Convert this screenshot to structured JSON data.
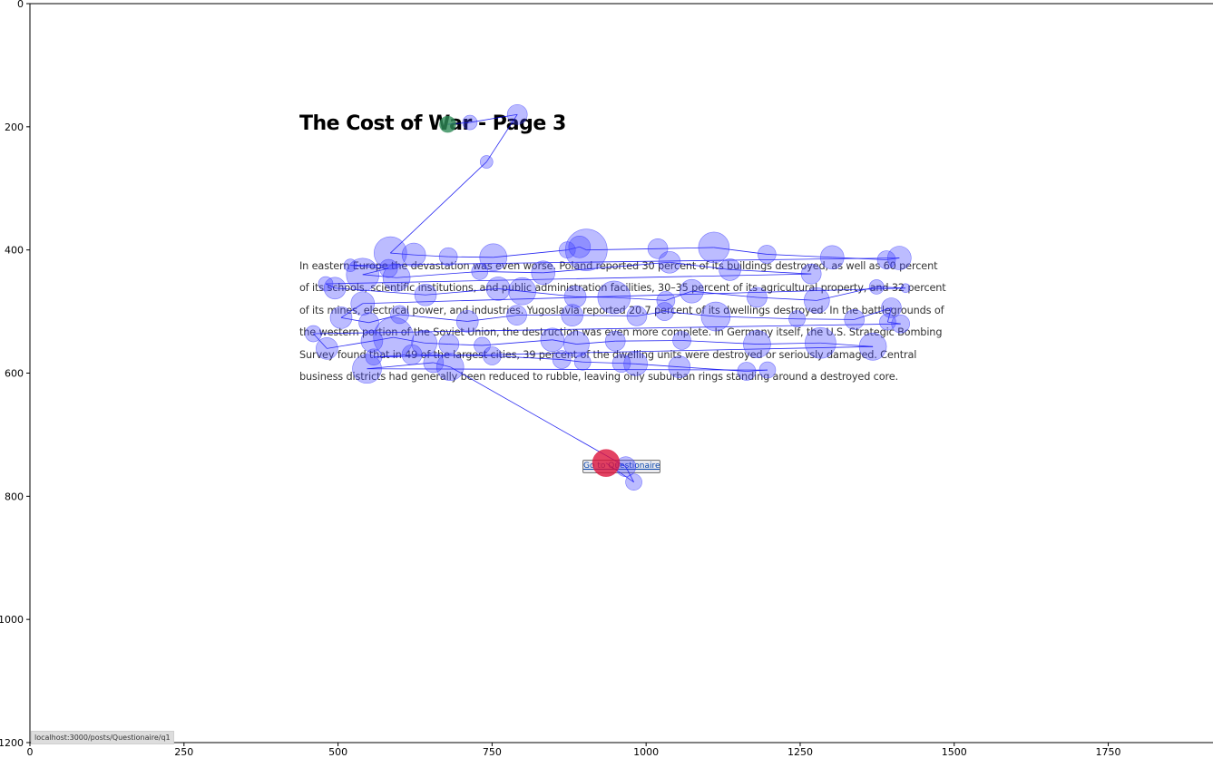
{
  "page": {
    "title": "The Cost of War - Page 3",
    "body_text": "In eastern Europe the devastation was even worse. Poland reported 30 percent of its buildings destroyed, as well as 60 percent of its schools, scientific institutions, and public administration facilities, 30–35 percent of its agricultural property, and 32 percent of its mines, electrical power, and industries. Yugoslavia reported 20.7 percent of its dwellings destroyed. In the battlegrounds of the western portion of the Soviet Union, the destruction was even more complete. In Germany itself, the U.S. Strategic Bombing Survey found that in 49 of the largest cities, 39 percent of the dwelling units were destroyed or seriously damaged. Central business districts had generally been reduced to rubble, leaving only suburban rings standing around a destroyed core.",
    "button_label": "Go to Questionaire",
    "status_url": "localhost:3000/posts/Questionaire/q1"
  },
  "chart_data": {
    "type": "scatter",
    "title": "",
    "xlabel": "",
    "ylabel": "",
    "xlim": [
      0,
      1920
    ],
    "ylim": [
      1200,
      0
    ],
    "y_inverted": true,
    "x_ticks": [
      0,
      250,
      500,
      750,
      1000,
      1250,
      1500,
      1750
    ],
    "y_ticks": [
      0,
      200,
      400,
      600,
      800,
      1000,
      1200
    ],
    "grid": false,
    "connect_points": true,
    "colors": {
      "fixation": "#4040ff",
      "path": "#0000ee",
      "start": "#2e8b57",
      "end": "#dc143c"
    },
    "series": [
      {
        "type": "fixations",
        "points": [
          {
            "x": 678,
            "y": 196,
            "d": 18
          },
          {
            "x": 714,
            "y": 193,
            "d": 16
          },
          {
            "x": 791,
            "y": 180,
            "d": 22
          },
          {
            "x": 741,
            "y": 257,
            "d": 14
          },
          {
            "x": 585,
            "y": 405,
            "d": 36
          },
          {
            "x": 623,
            "y": 408,
            "d": 26
          },
          {
            "x": 679,
            "y": 411,
            "d": 20
          },
          {
            "x": 752,
            "y": 412,
            "d": 30
          },
          {
            "x": 872,
            "y": 400,
            "d": 18
          },
          {
            "x": 892,
            "y": 395,
            "d": 24
          },
          {
            "x": 903,
            "y": 400,
            "d": 46
          },
          {
            "x": 1019,
            "y": 398,
            "d": 22
          },
          {
            "x": 1110,
            "y": 396,
            "d": 34
          },
          {
            "x": 1196,
            "y": 407,
            "d": 20
          },
          {
            "x": 1302,
            "y": 412,
            "d": 26
          },
          {
            "x": 1390,
            "y": 416,
            "d": 20
          },
          {
            "x": 1411,
            "y": 413,
            "d": 26
          },
          {
            "x": 520,
            "y": 425,
            "d": 14
          },
          {
            "x": 582,
            "y": 430,
            "d": 20
          },
          {
            "x": 540,
            "y": 440,
            "d": 36
          },
          {
            "x": 595,
            "y": 445,
            "d": 30
          },
          {
            "x": 730,
            "y": 435,
            "d": 18
          },
          {
            "x": 833,
            "y": 437,
            "d": 26
          },
          {
            "x": 1038,
            "y": 420,
            "d": 24
          },
          {
            "x": 1136,
            "y": 432,
            "d": 24
          },
          {
            "x": 1268,
            "y": 439,
            "d": 22
          },
          {
            "x": 480,
            "y": 455,
            "d": 16
          },
          {
            "x": 495,
            "y": 462,
            "d": 24
          },
          {
            "x": 642,
            "y": 473,
            "d": 24
          },
          {
            "x": 760,
            "y": 463,
            "d": 26
          },
          {
            "x": 799,
            "y": 467,
            "d": 30
          },
          {
            "x": 885,
            "y": 476,
            "d": 24
          },
          {
            "x": 948,
            "y": 477,
            "d": 36
          },
          {
            "x": 1032,
            "y": 482,
            "d": 20
          },
          {
            "x": 1074,
            "y": 467,
            "d": 26
          },
          {
            "x": 1180,
            "y": 477,
            "d": 22
          },
          {
            "x": 1277,
            "y": 482,
            "d": 28
          },
          {
            "x": 1374,
            "y": 460,
            "d": 16
          },
          {
            "x": 1421,
            "y": 462,
            "d": 10
          },
          {
            "x": 540,
            "y": 487,
            "d": 26
          },
          {
            "x": 505,
            "y": 510,
            "d": 24
          },
          {
            "x": 550,
            "y": 518,
            "d": 22
          },
          {
            "x": 600,
            "y": 505,
            "d": 20
          },
          {
            "x": 710,
            "y": 516,
            "d": 24
          },
          {
            "x": 790,
            "y": 506,
            "d": 22
          },
          {
            "x": 880,
            "y": 506,
            "d": 24
          },
          {
            "x": 985,
            "y": 507,
            "d": 22
          },
          {
            "x": 1030,
            "y": 500,
            "d": 20
          },
          {
            "x": 1113,
            "y": 508,
            "d": 32
          },
          {
            "x": 1245,
            "y": 512,
            "d": 18
          },
          {
            "x": 1338,
            "y": 513,
            "d": 22
          },
          {
            "x": 1398,
            "y": 494,
            "d": 22
          },
          {
            "x": 1392,
            "y": 517,
            "d": 18
          },
          {
            "x": 1413,
            "y": 520,
            "d": 20
          },
          {
            "x": 460,
            "y": 536,
            "d": 18
          },
          {
            "x": 482,
            "y": 560,
            "d": 24
          },
          {
            "x": 555,
            "y": 548,
            "d": 24
          },
          {
            "x": 590,
            "y": 542,
            "d": 44
          },
          {
            "x": 640,
            "y": 551,
            "d": 28
          },
          {
            "x": 680,
            "y": 553,
            "d": 22
          },
          {
            "x": 734,
            "y": 555,
            "d": 18
          },
          {
            "x": 848,
            "y": 546,
            "d": 26
          },
          {
            "x": 887,
            "y": 553,
            "d": 28
          },
          {
            "x": 950,
            "y": 548,
            "d": 22
          },
          {
            "x": 1058,
            "y": 547,
            "d": 20
          },
          {
            "x": 1180,
            "y": 553,
            "d": 30
          },
          {
            "x": 1283,
            "y": 551,
            "d": 34
          },
          {
            "x": 1368,
            "y": 557,
            "d": 30
          },
          {
            "x": 558,
            "y": 574,
            "d": 18
          },
          {
            "x": 620,
            "y": 570,
            "d": 22
          },
          {
            "x": 750,
            "y": 572,
            "d": 20
          },
          {
            "x": 863,
            "y": 578,
            "d": 20
          },
          {
            "x": 897,
            "y": 582,
            "d": 18
          },
          {
            "x": 960,
            "y": 584,
            "d": 20
          },
          {
            "x": 983,
            "y": 585,
            "d": 26
          },
          {
            "x": 1054,
            "y": 590,
            "d": 24
          },
          {
            "x": 1163,
            "y": 597,
            "d": 20
          },
          {
            "x": 1197,
            "y": 595,
            "d": 18
          },
          {
            "x": 547,
            "y": 593,
            "d": 32
          },
          {
            "x": 655,
            "y": 583,
            "d": 22
          },
          {
            "x": 682,
            "y": 590,
            "d": 30
          },
          {
            "x": 967,
            "y": 752,
            "d": 22
          },
          {
            "x": 980,
            "y": 777,
            "d": 18
          },
          {
            "x": 935,
            "y": 746,
            "d": 30
          }
        ]
      }
    ]
  }
}
